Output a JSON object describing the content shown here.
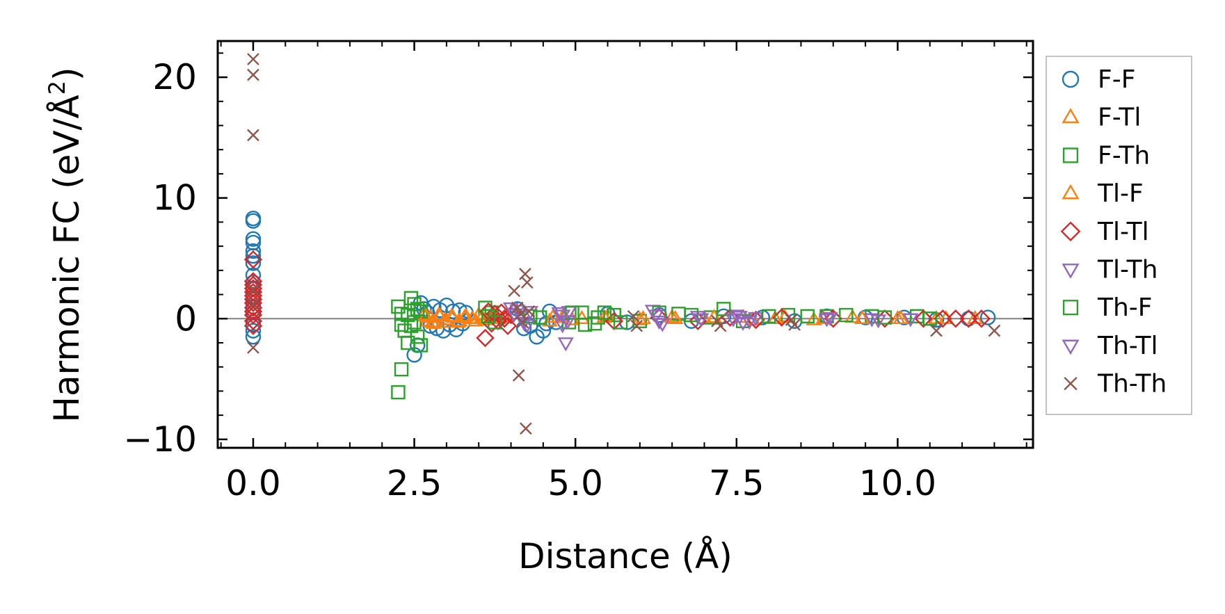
{
  "chart_data": {
    "type": "scatter",
    "title": "",
    "xlabel": "Distance (Å)",
    "ylabel_main": "Harmonic FC (eV/Å",
    "ylabel_sup": "2",
    "ylabel_close": ")",
    "xlim": [
      -0.55,
      12.1
    ],
    "ylim": [
      -10.7,
      23
    ],
    "xticks": [
      {
        "value": 0.0,
        "label": "0.0"
      },
      {
        "value": 2.5,
        "label": "2.5"
      },
      {
        "value": 5.0,
        "label": "5.0"
      },
      {
        "value": 7.5,
        "label": "7.5"
      },
      {
        "value": 10.0,
        "label": "10.0"
      }
    ],
    "yticks": [
      {
        "value": -10,
        "label": "−10"
      },
      {
        "value": 0,
        "label": "0"
      },
      {
        "value": 10,
        "label": "10"
      },
      {
        "value": 20,
        "label": "20"
      }
    ],
    "zero_line": 0,
    "legend_position": "right",
    "series": [
      {
        "name": "F-F",
        "marker": "circle",
        "color": "#1f77b4",
        "points": [
          [
            0,
            8.3
          ],
          [
            0,
            8.1
          ],
          [
            0,
            6.6
          ],
          [
            0,
            6.3
          ],
          [
            0,
            5.6
          ],
          [
            0,
            5.2
          ],
          [
            0,
            4.6
          ],
          [
            0,
            3.6
          ],
          [
            0,
            3.0
          ],
          [
            0,
            2.5
          ],
          [
            0,
            1.8
          ],
          [
            0,
            1.0
          ],
          [
            0,
            0.5
          ],
          [
            0,
            -0.5
          ],
          [
            0,
            -1.0
          ],
          [
            0,
            -1.5
          ],
          [
            2.5,
            -3.0
          ],
          [
            2.55,
            -2.2
          ],
          [
            2.6,
            1.3
          ],
          [
            2.65,
            0.8
          ],
          [
            2.7,
            0.5
          ],
          [
            2.75,
            -0.6
          ],
          [
            2.8,
            1.0
          ],
          [
            2.85,
            -0.8
          ],
          [
            2.9,
            0.7
          ],
          [
            2.95,
            -1.0
          ],
          [
            3.0,
            1.1
          ],
          [
            3.05,
            -0.5
          ],
          [
            3.1,
            0.6
          ],
          [
            3.15,
            -0.9
          ],
          [
            3.2,
            0.7
          ],
          [
            3.25,
            -0.4
          ],
          [
            3.3,
            0.5
          ],
          [
            4.1,
            0.8
          ],
          [
            4.2,
            -0.8
          ],
          [
            4.3,
            -0.6
          ],
          [
            4.4,
            -1.5
          ],
          [
            4.5,
            -1.0
          ],
          [
            4.55,
            -0.4
          ],
          [
            4.6,
            0.6
          ],
          [
            4.7,
            -0.3
          ],
          [
            5.5,
            0.4
          ],
          [
            5.8,
            -0.3
          ],
          [
            6.3,
            0.3
          ],
          [
            6.8,
            -0.2
          ],
          [
            7.3,
            0.2
          ],
          [
            7.9,
            0.1
          ],
          [
            8.4,
            -0.2
          ],
          [
            8.9,
            0.2
          ],
          [
            9.5,
            0.1
          ],
          [
            10.1,
            0.1
          ],
          [
            10.6,
            -0.1
          ],
          [
            11.1,
            0.0
          ],
          [
            11.4,
            0.1
          ]
        ]
      },
      {
        "name": "F-Tl",
        "marker": "triangle-up",
        "color": "#ff7f0e",
        "points": [
          [
            2.65,
            0.3
          ],
          [
            2.7,
            -0.2
          ],
          [
            2.75,
            0.1
          ],
          [
            2.8,
            -0.4
          ],
          [
            2.9,
            0.2
          ],
          [
            3.0,
            -0.3
          ],
          [
            3.1,
            0.1
          ],
          [
            3.2,
            -0.2
          ],
          [
            3.3,
            0.2
          ],
          [
            3.4,
            0.0
          ],
          [
            3.5,
            0.3
          ],
          [
            3.6,
            -0.1
          ],
          [
            3.7,
            0.2
          ],
          [
            3.8,
            0.0
          ],
          [
            3.9,
            0.1
          ],
          [
            4.6,
            -0.2
          ],
          [
            4.8,
            0.1
          ],
          [
            5.1,
            0.0
          ],
          [
            5.5,
            0.2
          ],
          [
            6.0,
            -0.1
          ],
          [
            6.5,
            0.1
          ],
          [
            7.0,
            0.0
          ],
          [
            7.6,
            0.1
          ],
          [
            8.1,
            0.0
          ],
          [
            8.7,
            -0.1
          ],
          [
            9.3,
            0.1
          ],
          [
            10.0,
            0.0
          ],
          [
            10.6,
            0.0
          ],
          [
            11.2,
            0.0
          ]
        ]
      },
      {
        "name": "F-Th",
        "marker": "square",
        "color": "#2ca02c",
        "points": [
          [
            2.25,
            -6.1
          ],
          [
            2.3,
            -4.2
          ],
          [
            2.25,
            1.0
          ],
          [
            2.3,
            0.4
          ],
          [
            2.3,
            -0.5
          ],
          [
            2.35,
            -1.0
          ],
          [
            2.4,
            -2.0
          ],
          [
            2.45,
            1.7
          ],
          [
            2.5,
            1.2
          ],
          [
            2.55,
            -1.5
          ],
          [
            2.5,
            -0.3
          ],
          [
            2.6,
            0.6
          ],
          [
            2.6,
            -2.2
          ],
          [
            3.6,
            0.9
          ],
          [
            3.7,
            0.5
          ],
          [
            4.3,
            0.2
          ],
          [
            4.9,
            -0.3
          ],
          [
            5.1,
            0.5
          ],
          [
            5.3,
            -0.4
          ],
          [
            5.6,
            0.3
          ],
          [
            6.0,
            -0.2
          ],
          [
            6.6,
            0.4
          ],
          [
            7.1,
            0.1
          ],
          [
            7.6,
            -0.2
          ],
          [
            8.3,
            0.3
          ],
          [
            8.9,
            0.2
          ],
          [
            9.6,
            0.2
          ],
          [
            10.3,
            0.2
          ]
        ]
      },
      {
        "name": "Tl-F",
        "marker": "triangle-up",
        "color": "#ff7f0e",
        "points": [
          [
            2.68,
            0.2
          ],
          [
            2.78,
            -0.3
          ],
          [
            2.88,
            0.3
          ],
          [
            2.98,
            -0.1
          ],
          [
            3.08,
            0.2
          ],
          [
            3.18,
            -0.3
          ],
          [
            3.28,
            0.1
          ],
          [
            3.45,
            -0.2
          ],
          [
            3.55,
            0.1
          ],
          [
            3.75,
            0.2
          ],
          [
            4.65,
            0.1
          ],
          [
            4.95,
            -0.1
          ],
          [
            5.45,
            0.1
          ],
          [
            6.05,
            0.0
          ],
          [
            6.55,
            0.0
          ],
          [
            7.15,
            0.1
          ],
          [
            7.75,
            -0.1
          ],
          [
            8.25,
            0.1
          ],
          [
            8.85,
            0.0
          ],
          [
            9.45,
            0.0
          ],
          [
            10.05,
            0.0
          ],
          [
            10.75,
            0.0
          ]
        ]
      },
      {
        "name": "Tl-Tl",
        "marker": "diamond",
        "color": "#d62728",
        "points": [
          [
            0,
            4.9
          ],
          [
            0,
            3.1
          ],
          [
            0,
            2.8
          ],
          [
            0,
            2.5
          ],
          [
            0,
            2.2
          ],
          [
            0,
            1.9
          ],
          [
            0,
            1.6
          ],
          [
            0,
            1.3
          ],
          [
            0,
            0.9
          ],
          [
            0,
            0.6
          ],
          [
            0,
            0.3
          ],
          [
            0,
            -0.2
          ],
          [
            0,
            -0.6
          ],
          [
            3.6,
            -1.6
          ],
          [
            3.65,
            0.6
          ],
          [
            3.7,
            -0.4
          ],
          [
            3.75,
            0.4
          ],
          [
            3.8,
            -0.2
          ],
          [
            3.85,
            0.5
          ],
          [
            3.9,
            0.0
          ],
          [
            3.95,
            -0.6
          ],
          [
            4.0,
            0.3
          ],
          [
            5.6,
            -0.2
          ],
          [
            6.3,
            0.1
          ],
          [
            6.9,
            -0.2
          ],
          [
            7.4,
            0.1
          ],
          [
            7.8,
            -0.1
          ],
          [
            8.2,
            0.1
          ],
          [
            9.0,
            0.0
          ],
          [
            9.8,
            0.0
          ],
          [
            10.4,
            0.0
          ],
          [
            10.7,
            0.0
          ],
          [
            10.9,
            0.0
          ],
          [
            11.1,
            0.0
          ],
          [
            11.3,
            0.0
          ]
        ]
      },
      {
        "name": "Tl-Th",
        "marker": "triangle-down",
        "color": "#9467bd",
        "points": [
          [
            4.0,
            0.9
          ],
          [
            4.1,
            0.7
          ],
          [
            4.2,
            -0.3
          ],
          [
            4.3,
            0.6
          ],
          [
            4.75,
            0.5
          ],
          [
            4.8,
            -0.5
          ],
          [
            4.85,
            -2.0
          ],
          [
            4.9,
            0.6
          ],
          [
            6.2,
            0.7
          ],
          [
            6.3,
            -0.2
          ],
          [
            6.9,
            0.2
          ],
          [
            7.5,
            0.3
          ],
          [
            7.6,
            -0.3
          ],
          [
            7.8,
            0.1
          ],
          [
            8.9,
            0.0
          ],
          [
            9.6,
            0.0
          ],
          [
            10.2,
            0.0
          ]
        ]
      },
      {
        "name": "Th-F",
        "marker": "square",
        "color": "#2ca02c",
        "points": [
          [
            2.4,
            0.3
          ],
          [
            2.45,
            -0.6
          ],
          [
            2.55,
            0.8
          ],
          [
            3.65,
            0.2
          ],
          [
            3.75,
            -0.3
          ],
          [
            4.45,
            0.1
          ],
          [
            4.95,
            0.5
          ],
          [
            5.15,
            -0.5
          ],
          [
            5.35,
            0.1
          ],
          [
            5.45,
            0.5
          ],
          [
            5.7,
            -0.3
          ],
          [
            6.3,
            0.5
          ],
          [
            6.8,
            0.3
          ],
          [
            7.3,
            0.8
          ],
          [
            8.0,
            0.2
          ],
          [
            8.6,
            0.2
          ],
          [
            9.2,
            0.3
          ],
          [
            9.8,
            0.1
          ],
          [
            10.5,
            0.0
          ]
        ]
      },
      {
        "name": "Th-Tl",
        "marker": "triangle-down",
        "color": "#9467bd",
        "points": [
          [
            4.05,
            0.4
          ],
          [
            4.15,
            0.2
          ],
          [
            4.25,
            -0.5
          ],
          [
            4.8,
            0.3
          ],
          [
            4.88,
            -0.2
          ],
          [
            6.25,
            0.3
          ],
          [
            6.35,
            -0.4
          ],
          [
            6.95,
            0.0
          ],
          [
            7.45,
            0.0
          ],
          [
            7.55,
            0.2
          ],
          [
            7.7,
            -0.2
          ],
          [
            8.95,
            0.1
          ],
          [
            9.7,
            -0.1
          ]
        ]
      },
      {
        "name": "Th-Th",
        "marker": "x",
        "color": "#8c564b",
        "points": [
          [
            0,
            21.5
          ],
          [
            0,
            20.2
          ],
          [
            0,
            15.2
          ],
          [
            0,
            2.4
          ],
          [
            0,
            1.2
          ],
          [
            0,
            -2.4
          ],
          [
            4.05,
            2.3
          ],
          [
            4.1,
            0.9
          ],
          [
            4.12,
            -4.7
          ],
          [
            4.15,
            0.4
          ],
          [
            4.18,
            -0.3
          ],
          [
            4.22,
            3.7
          ],
          [
            4.23,
            -9.1
          ],
          [
            4.25,
            3.0
          ],
          [
            4.28,
            0.6
          ],
          [
            5.9,
            0.2
          ],
          [
            5.95,
            -0.6
          ],
          [
            7.2,
            -0.2
          ],
          [
            7.25,
            -0.6
          ],
          [
            8.35,
            -0.1
          ],
          [
            8.4,
            -0.5
          ],
          [
            10.6,
            -1.0
          ],
          [
            11.5,
            -1.0
          ]
        ]
      }
    ]
  }
}
